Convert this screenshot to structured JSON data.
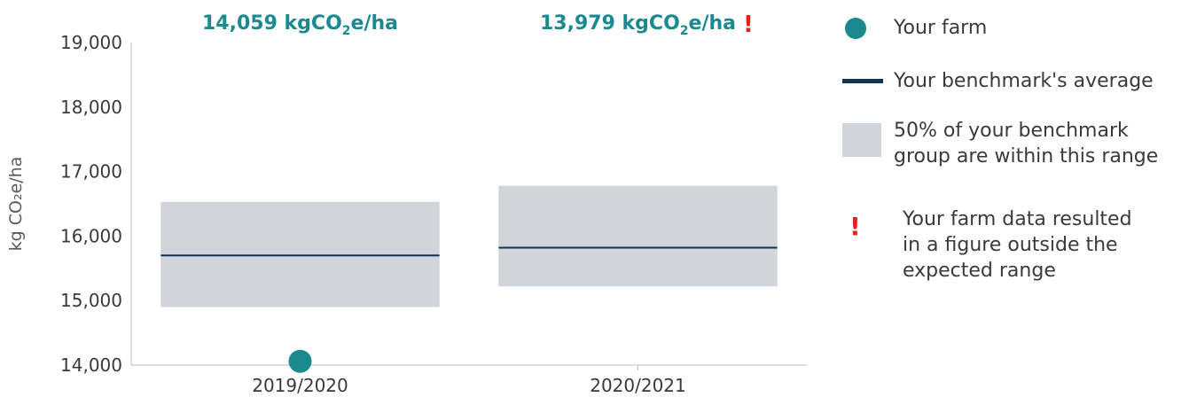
{
  "chart_data": {
    "type": "range",
    "ylabel": "kg CO₂e/ha",
    "ylim": [
      14000,
      19000
    ],
    "yticks": [
      "14,000",
      "15,000",
      "16,000",
      "17,000",
      "18,000",
      "19,000"
    ],
    "ytick_values": [
      14000,
      15000,
      16000,
      17000,
      18000,
      19000
    ],
    "categories": [
      "2019/2020",
      "2020/2021"
    ],
    "series": [
      {
        "name": "Your farm",
        "values": [
          14059,
          13979
        ]
      },
      {
        "name": "Your benchmark's average",
        "values": [
          15700,
          15820
        ]
      },
      {
        "name": "50% of your benchmark group are within this range",
        "low": [
          14900,
          15220
        ],
        "high": [
          16530,
          16780
        ]
      }
    ],
    "callouts": [
      "14,059 kgCO₂e/ha",
      "13,979 kgCO₂e/ha"
    ],
    "out_of_range": [
      false,
      true
    ],
    "colors": {
      "farm": "#1a8a8f",
      "average": "#0f3556",
      "range": "#d1d4da",
      "warning": "#e0221e"
    }
  },
  "legend": {
    "farm": "Your farm",
    "average": "Your benchmark's average",
    "range_lines": [
      "50% of your benchmark",
      "group are within this range"
    ],
    "warning_lines": [
      "Your farm data resulted",
      "in a figure outside the",
      "expected range"
    ],
    "warning_symbol": "!"
  }
}
